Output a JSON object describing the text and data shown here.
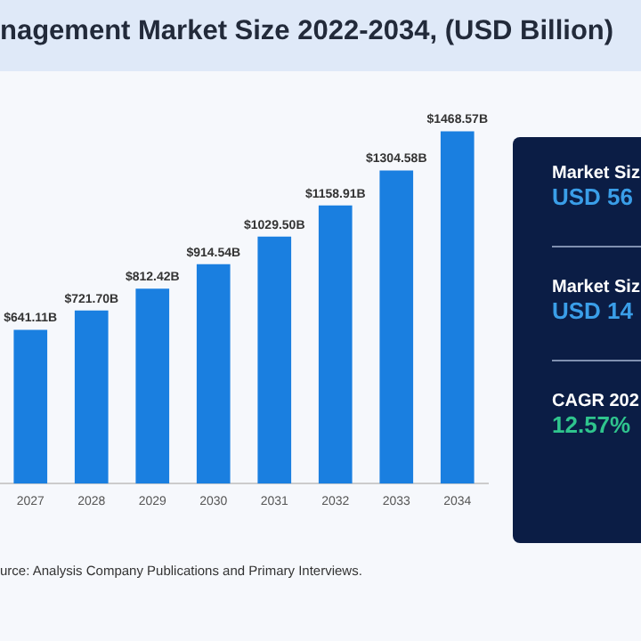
{
  "chart_data": [
    {
      "type": "bar",
      "title": "nagement Market Size 2022-2034, (USD Billion)",
      "categories": [
        "2027",
        "2028",
        "2029",
        "2030",
        "2031",
        "2032",
        "2033",
        "2034"
      ],
      "values": [
        641.11,
        721.7,
        812.42,
        914.54,
        1029.5,
        1158.91,
        1304.58,
        1468.57
      ],
      "value_labels": [
        "$641.11B",
        "$721.70B",
        "$812.42B",
        "$914.54B",
        "$1029.50B",
        "$1158.91B",
        "$1304.58B",
        "$1468.57B"
      ],
      "color": "#1a7fe0",
      "grid": false,
      "legend": false,
      "tick_labels": "x",
      "annotations": [
        "urce: Analysis Company Publications and Primary Interviews."
      ]
    },
    {
      "type": "other",
      "annotations": [
        "Market Siz",
        "USD 56",
        "Market Siz",
        "USD 14",
        "CAGR 202",
        "12.57%"
      ]
    }
  ]
}
